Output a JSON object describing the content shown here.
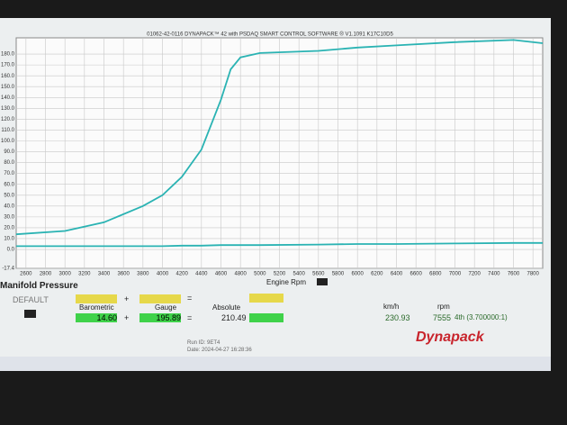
{
  "chart_data": {
    "type": "line",
    "title": "01062-42-0116 DYNAPACK™ 42 with PSDAQ SMART CONTROL SOFTWARE ® V1.1091 K17C10D5",
    "x_label": "Engine Rpm",
    "x": [
      2500,
      3000,
      3400,
      3800,
      4000,
      4200,
      4400,
      4600,
      4700,
      4800,
      5000,
      5600,
      6000,
      6400,
      7000,
      7600,
      7900
    ],
    "series": [
      {
        "color": "#2ab3b3",
        "values": [
          14,
          17,
          25,
          40,
          50,
          67,
          92,
          138,
          166,
          177,
          181,
          183,
          186,
          188,
          191,
          193,
          190
        ]
      },
      {
        "color": "#2ab3b3",
        "values": [
          3,
          3,
          3,
          3,
          3,
          3.5,
          3.5,
          4,
          4,
          4,
          4,
          4.5,
          5,
          5,
          5.5,
          6,
          6
        ]
      }
    ],
    "xlim": [
      2500,
      7900
    ],
    "xticks": [
      2600,
      2800,
      3000,
      3200,
      3400,
      3600,
      3800,
      4000,
      4200,
      4400,
      4600,
      4800,
      5000,
      5200,
      5400,
      5600,
      5800,
      6000,
      6200,
      6400,
      6600,
      6800,
      7000,
      7200,
      7400,
      7600,
      7800
    ],
    "ylim": [
      -17.4,
      195
    ],
    "yticks": [
      {
        "value": -17.4,
        "label": "-17.4"
      },
      {
        "value": 0,
        "label": "0.0"
      },
      {
        "value": 10,
        "label": "10.0"
      },
      {
        "value": 20,
        "label": "20.0"
      },
      {
        "value": 30,
        "label": "30.0"
      },
      {
        "value": 40,
        "label": "40.0"
      },
      {
        "value": 50,
        "label": "50.0"
      },
      {
        "value": 60,
        "label": "60.0"
      },
      {
        "value": 70,
        "label": "70.0"
      },
      {
        "value": 80,
        "label": "80.0"
      },
      {
        "value": 90,
        "label": "90.0"
      },
      {
        "value": 100,
        "label": "100.0"
      },
      {
        "value": 110,
        "label": "110.0"
      },
      {
        "value": 120,
        "label": "120.0"
      },
      {
        "value": 130,
        "label": "130.0"
      },
      {
        "value": 140,
        "label": "140.0"
      },
      {
        "value": 150,
        "label": "150.0"
      },
      {
        "value": 160,
        "label": "160.0"
      },
      {
        "value": 170,
        "label": "170.0"
      },
      {
        "value": 180,
        "label": "180.0"
      }
    ],
    "grid": true
  },
  "panel": {
    "heading": "Manifold Pressure",
    "preset": "DEFAULT",
    "plus": "+",
    "equals": "=",
    "barometric_label": "Barometric",
    "gauge_label": "Gauge",
    "absolute_label": "Absolute",
    "barometric": "14.60",
    "gauge": "195.89",
    "absolute": "210.49",
    "speed_unit": "km/h",
    "rpm_unit": "rpm",
    "speed": "230.93",
    "rpm": "7555",
    "gear": "4th (3.700000:1)",
    "run_id": "Run ID: 9ET4",
    "date": "Date: 2024-04-27 16:28:36",
    "logo": "Dynapack"
  }
}
